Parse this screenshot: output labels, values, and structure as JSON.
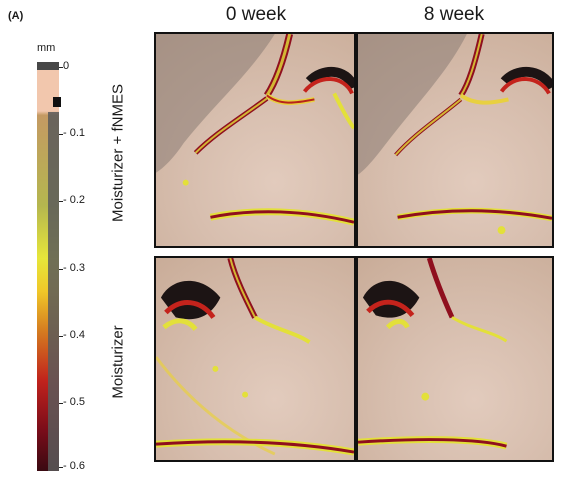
{
  "panel_label": "(A)",
  "colorbar": {
    "unit": "mm",
    "ticks": [
      "0",
      "- 0.1",
      "- 0.2",
      "- 0.3",
      "- 0.4",
      "- 0.5",
      "- 0.6"
    ],
    "colors": [
      "#f2c7ad",
      "#e6e63a",
      "#c0221c",
      "#3a0a12"
    ]
  },
  "columns": [
    "0 week",
    "8 week"
  ],
  "rows": [
    "Moisturizer + fNMES",
    "Moisturizer"
  ],
  "images": [
    {
      "row": "Moisturizer + fNMES",
      "col": "0 week"
    },
    {
      "row": "Moisturizer + fNMES",
      "col": "8 week"
    },
    {
      "row": "Moisturizer",
      "col": "0 week"
    },
    {
      "row": "Moisturizer",
      "col": "8 week"
    }
  ]
}
